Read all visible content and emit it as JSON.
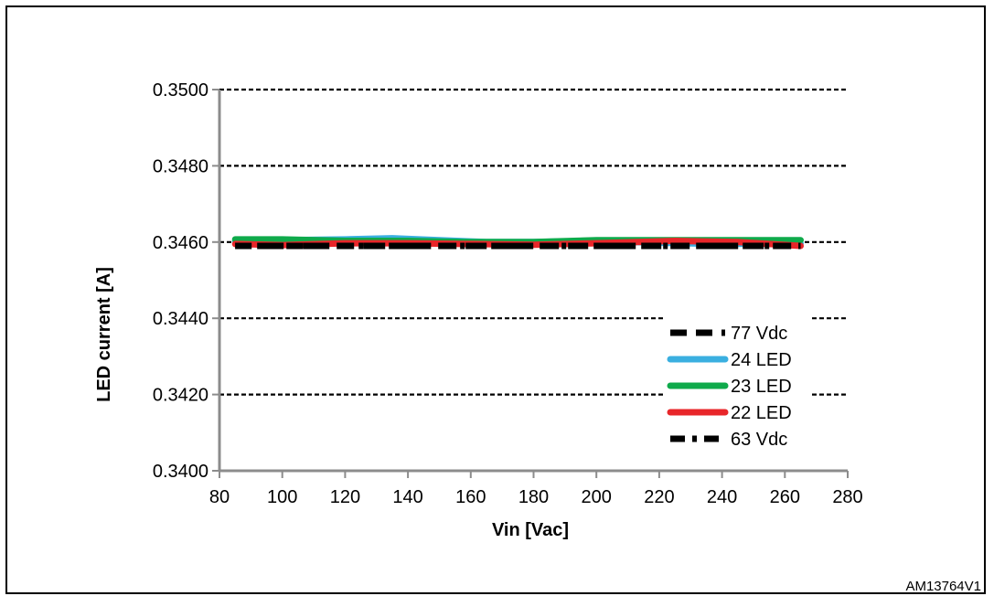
{
  "figure_id": "AM13764V1",
  "chart_data": {
    "type": "line",
    "xlabel": "Vin [Vac]",
    "ylabel": "LED current [A]",
    "xlim": [
      80,
      280
    ],
    "ylim": [
      0.34,
      0.35
    ],
    "x_ticks": [
      "80",
      "100",
      "120",
      "140",
      "160",
      "180",
      "200",
      "220",
      "240",
      "260",
      "280"
    ],
    "y_ticks": [
      "0.3400",
      "0.3420",
      "0.3440",
      "0.3460",
      "0.3480",
      "0.3500"
    ],
    "grid": "horizontal dashed",
    "legend_position": "lower-right",
    "series": [
      {
        "name": "77 Vdc",
        "color": "#000000",
        "style": "dash",
        "x": [
          85,
          100,
          120,
          140,
          160,
          180,
          200,
          220,
          240,
          265
        ],
        "y": [
          0.3459,
          0.3459,
          0.3459,
          0.3459,
          0.3459,
          0.3459,
          0.3459,
          0.3459,
          0.3459,
          0.3459
        ]
      },
      {
        "name": "24 LED",
        "color": "#3AAFE0",
        "style": "solid",
        "x": [
          85,
          100,
          120,
          135,
          150,
          165,
          180,
          200,
          220,
          240,
          265
        ],
        "y": [
          0.34603,
          0.34605,
          0.34607,
          0.3461,
          0.34605,
          0.346,
          0.346,
          0.34603,
          0.34598,
          0.34595,
          0.34597
        ]
      },
      {
        "name": "23 LED",
        "color": "#0FAA4B",
        "style": "solid",
        "x": [
          85,
          100,
          120,
          140,
          160,
          180,
          200,
          220,
          240,
          265
        ],
        "y": [
          0.34607,
          0.34607,
          0.34603,
          0.34603,
          0.346,
          0.346,
          0.34605,
          0.34605,
          0.34605,
          0.34605
        ]
      },
      {
        "name": "22 LED",
        "color": "#E8262A",
        "style": "solid",
        "x": [
          85,
          100,
          120,
          140,
          160,
          180,
          200,
          225,
          245,
          265
        ],
        "y": [
          0.34595,
          0.34592,
          0.34597,
          0.34597,
          0.34595,
          0.34593,
          0.34597,
          0.34603,
          0.346,
          0.3459
        ]
      },
      {
        "name": "63 Vdc",
        "color": "#000000",
        "style": "dashdot",
        "x": [
          85,
          100,
          120,
          140,
          160,
          180,
          200,
          220,
          240,
          265
        ],
        "y": [
          0.3459,
          0.3459,
          0.3459,
          0.3459,
          0.3459,
          0.3459,
          0.3459,
          0.3459,
          0.3459,
          0.3459
        ]
      }
    ]
  }
}
